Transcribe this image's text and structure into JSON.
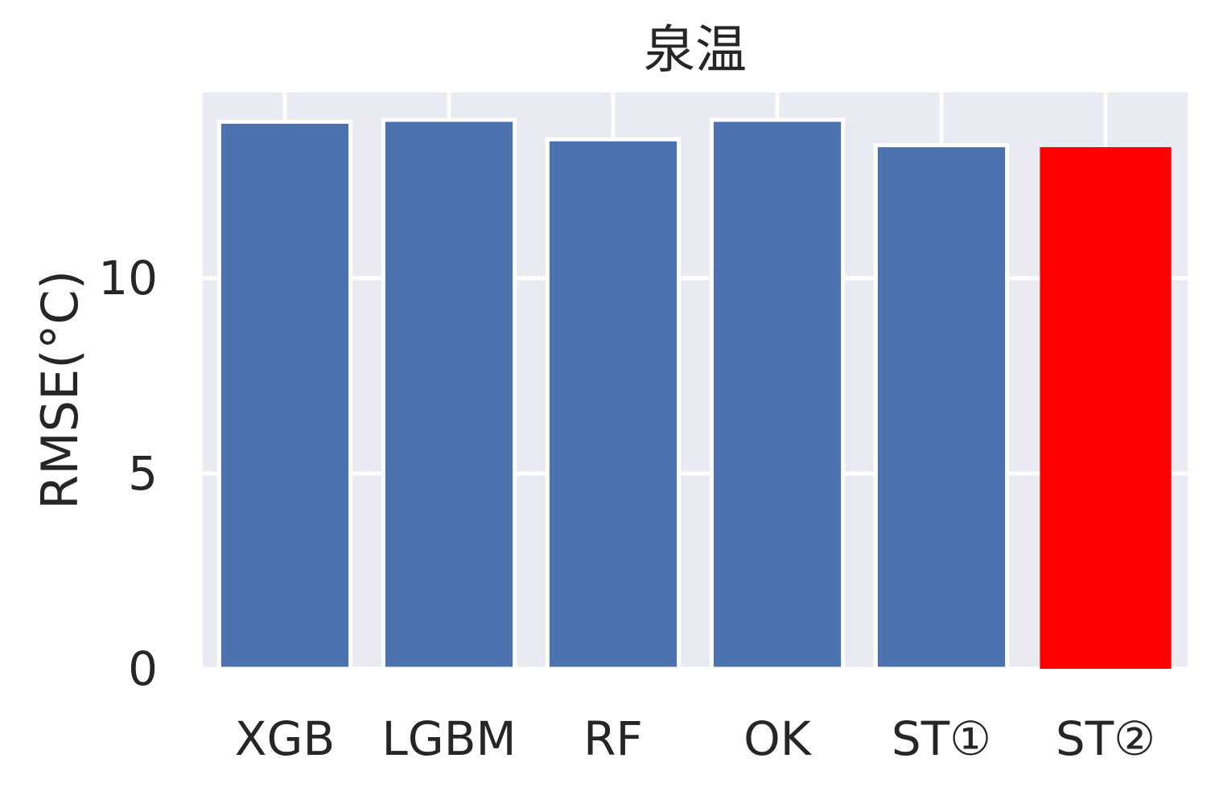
{
  "chart_data": {
    "type": "bar",
    "title": "泉温",
    "xlabel": "",
    "ylabel": "RMSE(°C)",
    "categories": [
      "XGB",
      "LGBM",
      "RF",
      "OK",
      "ST①",
      "ST②"
    ],
    "values": [
      14.0,
      14.05,
      13.55,
      14.05,
      13.4,
      13.35
    ],
    "ylim": [
      0,
      14.75
    ],
    "yticks": [
      0,
      5,
      10
    ],
    "ytick_labels": [
      "0",
      "5",
      "10"
    ],
    "grid": true,
    "colors": {
      "default_bar": "#4c72b0",
      "highlight_bar": "#ff0000",
      "plot_background": "#eaeaf2",
      "grid": "#ffffff",
      "bar_edge": "#ffffff"
    },
    "highlight_index": 5
  }
}
